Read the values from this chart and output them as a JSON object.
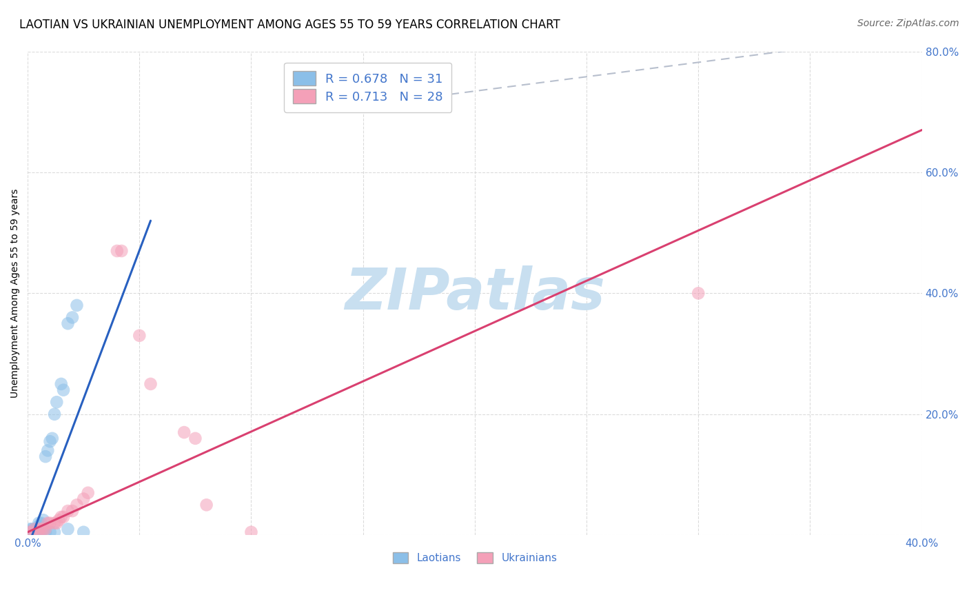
{
  "title": "LAOTIAN VS UKRAINIAN UNEMPLOYMENT AMONG AGES 55 TO 59 YEARS CORRELATION CHART",
  "source": "Source: ZipAtlas.com",
  "ylabel": "Unemployment Among Ages 55 to 59 years",
  "xlim": [
    0.0,
    0.4
  ],
  "ylim": [
    0.0,
    0.8
  ],
  "background_color": "#ffffff",
  "grid_color": "#cccccc",
  "laotian_color": "#8bbfe8",
  "ukrainian_color": "#f4a0b8",
  "laotian_R": 0.678,
  "laotian_N": 31,
  "ukrainian_R": 0.713,
  "ukrainian_N": 28,
  "laotian_line_color": "#2860c0",
  "ukrainian_line_color": "#d94070",
  "diagonal_line_color": "#b0b8c8",
  "laotian_line": [
    [
      0.0,
      -0.02
    ],
    [
      0.055,
      0.52
    ]
  ],
  "ukrainian_line": [
    [
      0.0,
      0.005
    ],
    [
      0.4,
      0.67
    ]
  ],
  "diagonal_line": [
    [
      0.17,
      0.72
    ],
    [
      0.38,
      0.82
    ]
  ],
  "laotian_points": [
    [
      0.001,
      0.005
    ],
    [
      0.001,
      0.01
    ],
    [
      0.002,
      0.01
    ],
    [
      0.003,
      0.01
    ],
    [
      0.004,
      0.01
    ],
    [
      0.005,
      0.015
    ],
    [
      0.005,
      0.02
    ],
    [
      0.006,
      0.02
    ],
    [
      0.007,
      0.025
    ],
    [
      0.008,
      0.13
    ],
    [
      0.009,
      0.14
    ],
    [
      0.01,
      0.155
    ],
    [
      0.011,
      0.16
    ],
    [
      0.012,
      0.2
    ],
    [
      0.013,
      0.22
    ],
    [
      0.015,
      0.25
    ],
    [
      0.016,
      0.24
    ],
    [
      0.018,
      0.35
    ],
    [
      0.02,
      0.36
    ],
    [
      0.022,
      0.38
    ],
    [
      0.002,
      0.005
    ],
    [
      0.003,
      0.005
    ],
    [
      0.004,
      0.005
    ],
    [
      0.005,
      0.005
    ],
    [
      0.006,
      0.01
    ],
    [
      0.007,
      0.01
    ],
    [
      0.008,
      0.005
    ],
    [
      0.01,
      0.005
    ],
    [
      0.012,
      0.005
    ],
    [
      0.018,
      0.01
    ],
    [
      0.025,
      0.005
    ]
  ],
  "ukrainian_points": [
    [
      0.0,
      0.005
    ],
    [
      0.002,
      0.005
    ],
    [
      0.003,
      0.01
    ],
    [
      0.005,
      0.01
    ],
    [
      0.006,
      0.01
    ],
    [
      0.007,
      0.01
    ],
    [
      0.008,
      0.01
    ],
    [
      0.009,
      0.02
    ],
    [
      0.01,
      0.02
    ],
    [
      0.012,
      0.02
    ],
    [
      0.013,
      0.02
    ],
    [
      0.014,
      0.025
    ],
    [
      0.015,
      0.03
    ],
    [
      0.016,
      0.03
    ],
    [
      0.018,
      0.04
    ],
    [
      0.02,
      0.04
    ],
    [
      0.022,
      0.05
    ],
    [
      0.025,
      0.06
    ],
    [
      0.027,
      0.07
    ],
    [
      0.04,
      0.47
    ],
    [
      0.042,
      0.47
    ],
    [
      0.05,
      0.33
    ],
    [
      0.055,
      0.25
    ],
    [
      0.07,
      0.17
    ],
    [
      0.075,
      0.16
    ],
    [
      0.08,
      0.05
    ],
    [
      0.3,
      0.4
    ],
    [
      0.1,
      0.005
    ]
  ],
  "title_fontsize": 12,
  "axis_label_fontsize": 10,
  "tick_fontsize": 11,
  "legend_fontsize": 13,
  "source_fontsize": 10,
  "watermark_color": "#c8dff0",
  "watermark_fontsize": 60,
  "tick_color": "#4477cc"
}
